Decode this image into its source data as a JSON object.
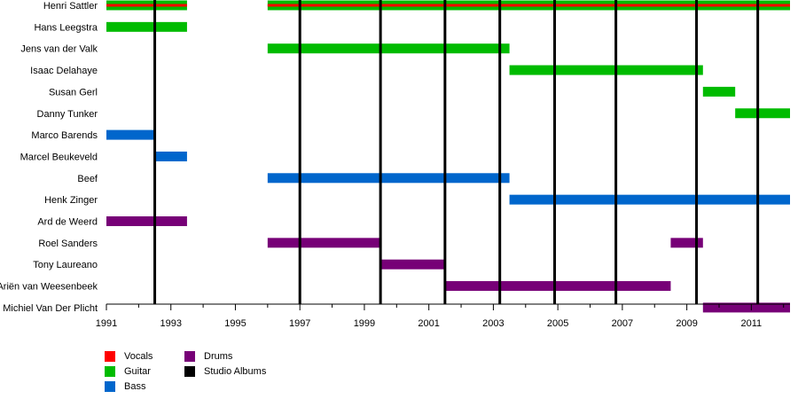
{
  "chart_data": {
    "type": "timeline",
    "title": "",
    "xlabel": "",
    "ylabel": "",
    "xlim": [
      1991,
      2012.2
    ],
    "x_ticks": [
      1991,
      1993,
      1995,
      1997,
      1999,
      2001,
      2003,
      2005,
      2007,
      2009,
      2011
    ],
    "grid": false,
    "colors": {
      "Vocals": "#ff0000",
      "Guitar": "#00bb00",
      "Bass": "#0066cc",
      "Drums": "#770077",
      "Studio Albums": "#000000"
    },
    "members": [
      {
        "name": "Henri Sattler",
        "periods": [
          {
            "role": "Vocals",
            "start": 1991,
            "end": 1993.5
          },
          {
            "role": "Guitar",
            "start": 1991,
            "end": 1993.5
          },
          {
            "role": "Vocals",
            "start": 1996,
            "end": 2012.2
          },
          {
            "role": "Guitar",
            "start": 1996,
            "end": 2012.2
          }
        ]
      },
      {
        "name": "Hans Leegstra",
        "periods": [
          {
            "role": "Guitar",
            "start": 1991,
            "end": 1993.5
          }
        ]
      },
      {
        "name": "Jens van der Valk",
        "periods": [
          {
            "role": "Guitar",
            "start": 1996,
            "end": 2003.5
          }
        ]
      },
      {
        "name": "Isaac Delahaye",
        "periods": [
          {
            "role": "Guitar",
            "start": 2003.5,
            "end": 2009.5
          }
        ]
      },
      {
        "name": "Susan Gerl",
        "periods": [
          {
            "role": "Guitar",
            "start": 2009.5,
            "end": 2010.5
          }
        ]
      },
      {
        "name": "Danny Tunker",
        "periods": [
          {
            "role": "Guitar",
            "start": 2010.5,
            "end": 2012.2
          }
        ]
      },
      {
        "name": "Marco Barends",
        "periods": [
          {
            "role": "Bass",
            "start": 1991,
            "end": 1992.5
          }
        ]
      },
      {
        "name": "Marcel Beukeveld",
        "periods": [
          {
            "role": "Bass",
            "start": 1992.5,
            "end": 1993.5
          }
        ]
      },
      {
        "name": "Beef",
        "periods": [
          {
            "role": "Bass",
            "start": 1996,
            "end": 2003.5
          }
        ]
      },
      {
        "name": "Henk Zinger",
        "periods": [
          {
            "role": "Bass",
            "start": 2003.5,
            "end": 2012.2
          }
        ]
      },
      {
        "name": "Ard de Weerd",
        "periods": [
          {
            "role": "Drums",
            "start": 1991,
            "end": 1993.5
          }
        ]
      },
      {
        "name": "Roel Sanders",
        "periods": [
          {
            "role": "Drums",
            "start": 1996,
            "end": 1999.5
          },
          {
            "role": "Drums",
            "start": 2008.5,
            "end": 2009.5
          }
        ]
      },
      {
        "name": "Tony Laureano",
        "periods": [
          {
            "role": "Drums",
            "start": 1999.5,
            "end": 2001.5
          }
        ]
      },
      {
        "name": "Ariën van Weesenbeek",
        "periods": [
          {
            "role": "Drums",
            "start": 2001.5,
            "end": 2008.5
          }
        ]
      },
      {
        "name": "Michiel Van Der Plicht",
        "periods": [
          {
            "role": "Drums",
            "start": 2009.5,
            "end": 2012.2
          }
        ]
      }
    ],
    "studio_albums": [
      1992.5,
      1997,
      1999.5,
      2001.5,
      2003.2,
      2004.9,
      2006.8,
      2009.3,
      2011.2
    ],
    "legend": {
      "columns": [
        [
          "Vocals",
          "Guitar",
          "Bass"
        ],
        [
          "Drums",
          "Studio Albums"
        ]
      ]
    }
  }
}
